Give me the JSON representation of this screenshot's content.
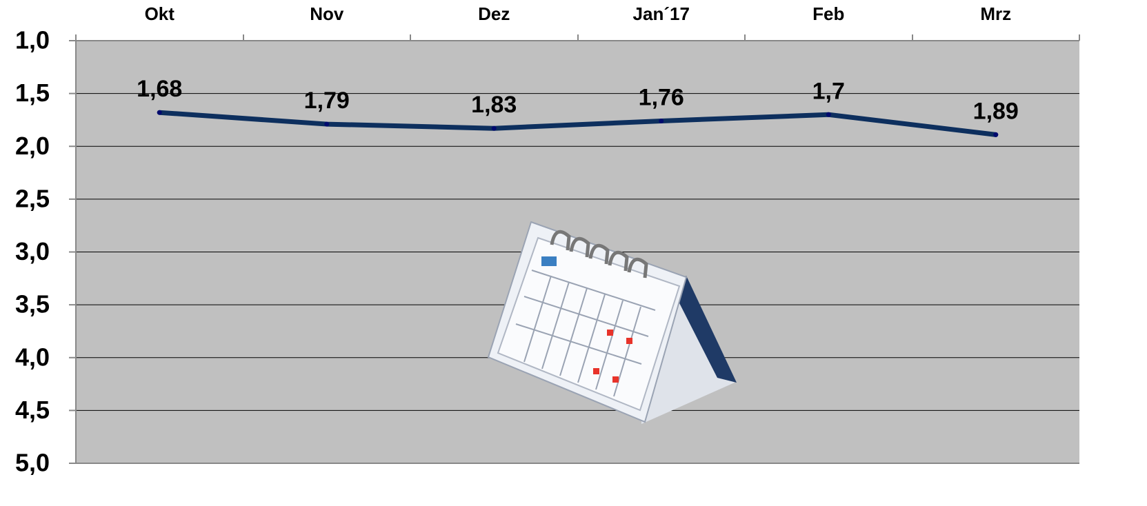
{
  "chart_data": {
    "type": "line",
    "categories": [
      "Okt",
      "Nov",
      "Dez",
      "Jan´17",
      "Feb",
      "Mrz"
    ],
    "values": [
      1.68,
      1.79,
      1.83,
      1.76,
      1.7,
      1.89
    ],
    "value_labels": [
      "1,68",
      "1,79",
      "1,83",
      "1,76",
      "1,7",
      "1,89"
    ],
    "color": "#0d2f5e",
    "ylim": [
      5,
      1
    ],
    "yticks": [
      {
        "value": 1,
        "label": "1,0"
      },
      {
        "value": 1.5,
        "label": "1,5"
      },
      {
        "value": 2,
        "label": "2,0"
      },
      {
        "value": 2.5,
        "label": "2,5"
      },
      {
        "value": 3,
        "label": "3,0"
      },
      {
        "value": 3.5,
        "label": "3,5"
      },
      {
        "value": 4,
        "label": "4,0"
      },
      {
        "value": 4.5,
        "label": "4,5"
      },
      {
        "value": 5,
        "label": "5,0"
      }
    ],
    "grid": true
  }
}
